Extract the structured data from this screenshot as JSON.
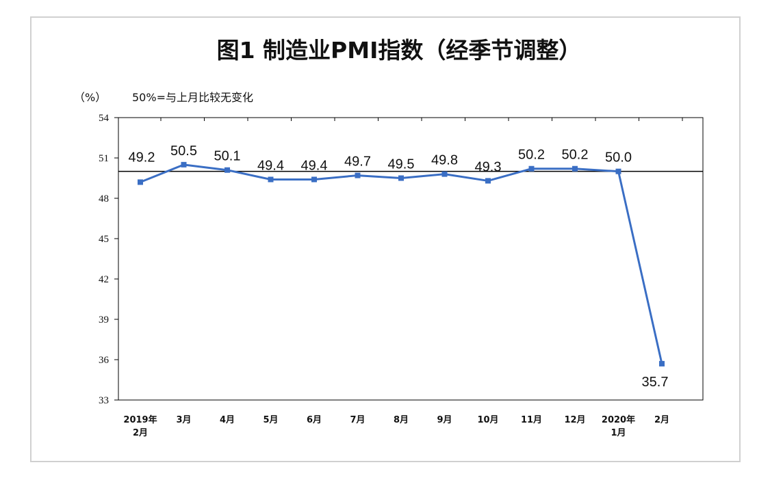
{
  "chart_data": {
    "type": "line",
    "title": "图1 制造业PMI指数（经季节调整）",
    "ylabel": "（%）",
    "reference_line": {
      "value": 50,
      "label": "50%=与上月比较无变化"
    },
    "ylim": [
      33,
      54
    ],
    "yticks": [
      "54",
      "51",
      "48",
      "45",
      "42",
      "39",
      "36",
      "33"
    ],
    "categories": [
      [
        "2019年",
        "2月"
      ],
      [
        "3月"
      ],
      [
        "4月"
      ],
      [
        "5月"
      ],
      [
        "6月"
      ],
      [
        "7月"
      ],
      [
        "8月"
      ],
      [
        "9月"
      ],
      [
        "10月"
      ],
      [
        "11月"
      ],
      [
        "12月"
      ],
      [
        "2020年",
        "1月"
      ],
      [
        "2月"
      ]
    ],
    "series": [
      {
        "values": [
          49.2,
          50.5,
          50.1,
          49.4,
          49.4,
          49.7,
          49.5,
          49.8,
          49.3,
          50.2,
          50.2,
          50.0,
          35.7
        ],
        "labels": [
          "49.2",
          "50.5",
          "50.1",
          "49.4",
          "49.4",
          "49.7",
          "49.5",
          "49.8",
          "49.3",
          "50.2",
          "50.2",
          "50.0",
          "35.7"
        ],
        "color": "#3a6ec4"
      }
    ],
    "grid": false,
    "legend": "none"
  }
}
